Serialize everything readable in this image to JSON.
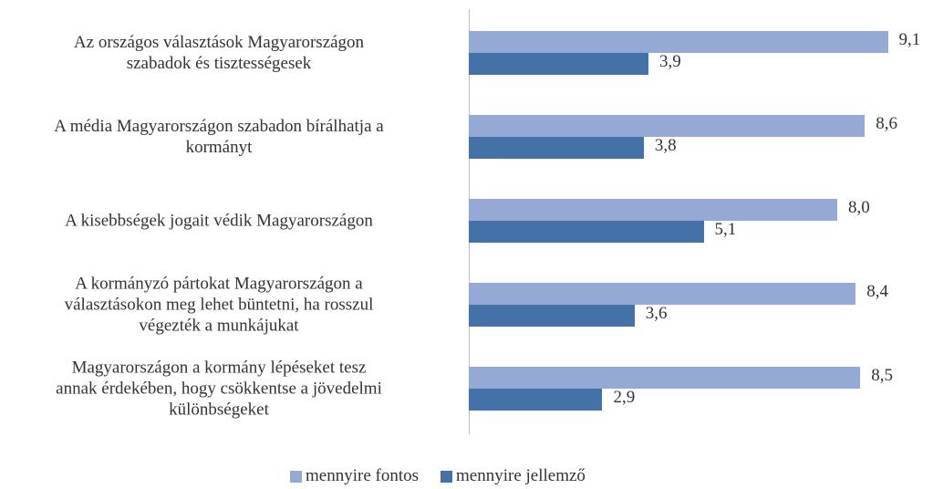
{
  "chart_data": {
    "type": "bar",
    "orientation": "horizontal",
    "categories": [
      "Az országos választások Magyarországon\nszabadok és tisztességesek",
      "A média Magyarországon szabadon bírálhatja a\nkormányt",
      "A kisebbségek jogait védik Magyarországon",
      "A kormányzó pártokat Magyarországon a\nválasztásokon meg lehet büntetni, ha rosszul\nvégezték a munkájukat",
      "Magyarországon a kormány lépéseket tesz\nannak érdekében, hogy csökkentse a jövedelmi\nkülönbségeket"
    ],
    "series": [
      {
        "name": "mennyire fontos",
        "color": "#95a9d5",
        "values": [
          9.1,
          8.6,
          8.0,
          8.4,
          8.5
        ],
        "value_labels": [
          "9,1",
          "8,6",
          "8,0",
          "8,4",
          "8,5"
        ]
      },
      {
        "name": "mennyire jellemző",
        "color": "#4472a8",
        "values": [
          3.9,
          3.8,
          5.1,
          3.6,
          2.9
        ],
        "value_labels": [
          "3,9",
          "3,8",
          "5,1",
          "3,6",
          "2,9"
        ]
      }
    ],
    "xlim": [
      0,
      10
    ],
    "legend": "bottom"
  }
}
